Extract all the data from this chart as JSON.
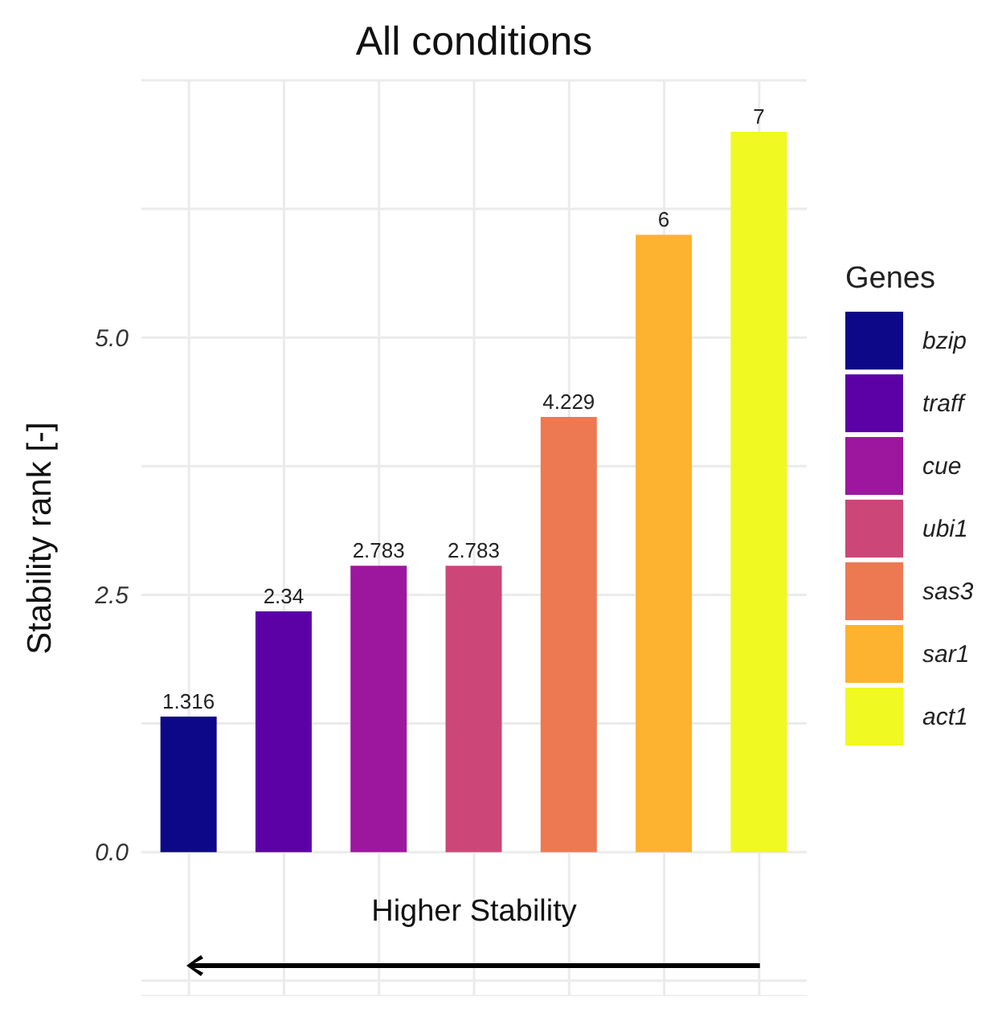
{
  "chart_data": {
    "type": "bar",
    "title": "All conditions",
    "ylabel": "Stability rank [-]",
    "legend_title": "Genes",
    "annotations": [
      "Higher Stability"
    ],
    "categories": [
      null,
      null,
      null,
      null,
      null,
      null,
      null
    ],
    "stacked": true,
    "series": [
      {
        "name": "bzip",
        "color": "#0d0887",
        "values": [
          1.316,
          null,
          null,
          null,
          null,
          null,
          null
        ]
      },
      {
        "name": "traff",
        "color": "#5c01a6",
        "values": [
          null,
          2.34,
          null,
          null,
          null,
          null,
          null
        ]
      },
      {
        "name": "cue",
        "color": "#9c179e",
        "values": [
          null,
          null,
          2.783,
          null,
          null,
          null,
          null
        ]
      },
      {
        "name": "ubi1",
        "color": "#cc4778",
        "values": [
          null,
          null,
          null,
          2.783,
          null,
          null,
          null
        ]
      },
      {
        "name": "sas3",
        "color": "#ed7953",
        "values": [
          null,
          null,
          null,
          null,
          4.229,
          null,
          null
        ]
      },
      {
        "name": "sar1",
        "color": "#fdb32f",
        "values": [
          null,
          null,
          null,
          null,
          null,
          6,
          null
        ]
      },
      {
        "name": "act1",
        "color": "#f0f921",
        "values": [
          null,
          null,
          null,
          null,
          null,
          null,
          7
        ]
      }
    ],
    "ylim": [
      -1.4,
      7.5
    ],
    "yticks": [
      {
        "value": -1.25,
        "label": null
      },
      {
        "value": 0,
        "label": "0.0"
      },
      {
        "value": 1.25,
        "label": null
      },
      {
        "value": 2.5,
        "label": "2.5"
      },
      {
        "value": 3.75,
        "label": null
      },
      {
        "value": 5,
        "label": "5.0"
      },
      {
        "value": 6.25,
        "label": null
      }
    ],
    "grid": true,
    "legend": "right",
    "tick_labels": "y",
    "data_labels": true
  }
}
